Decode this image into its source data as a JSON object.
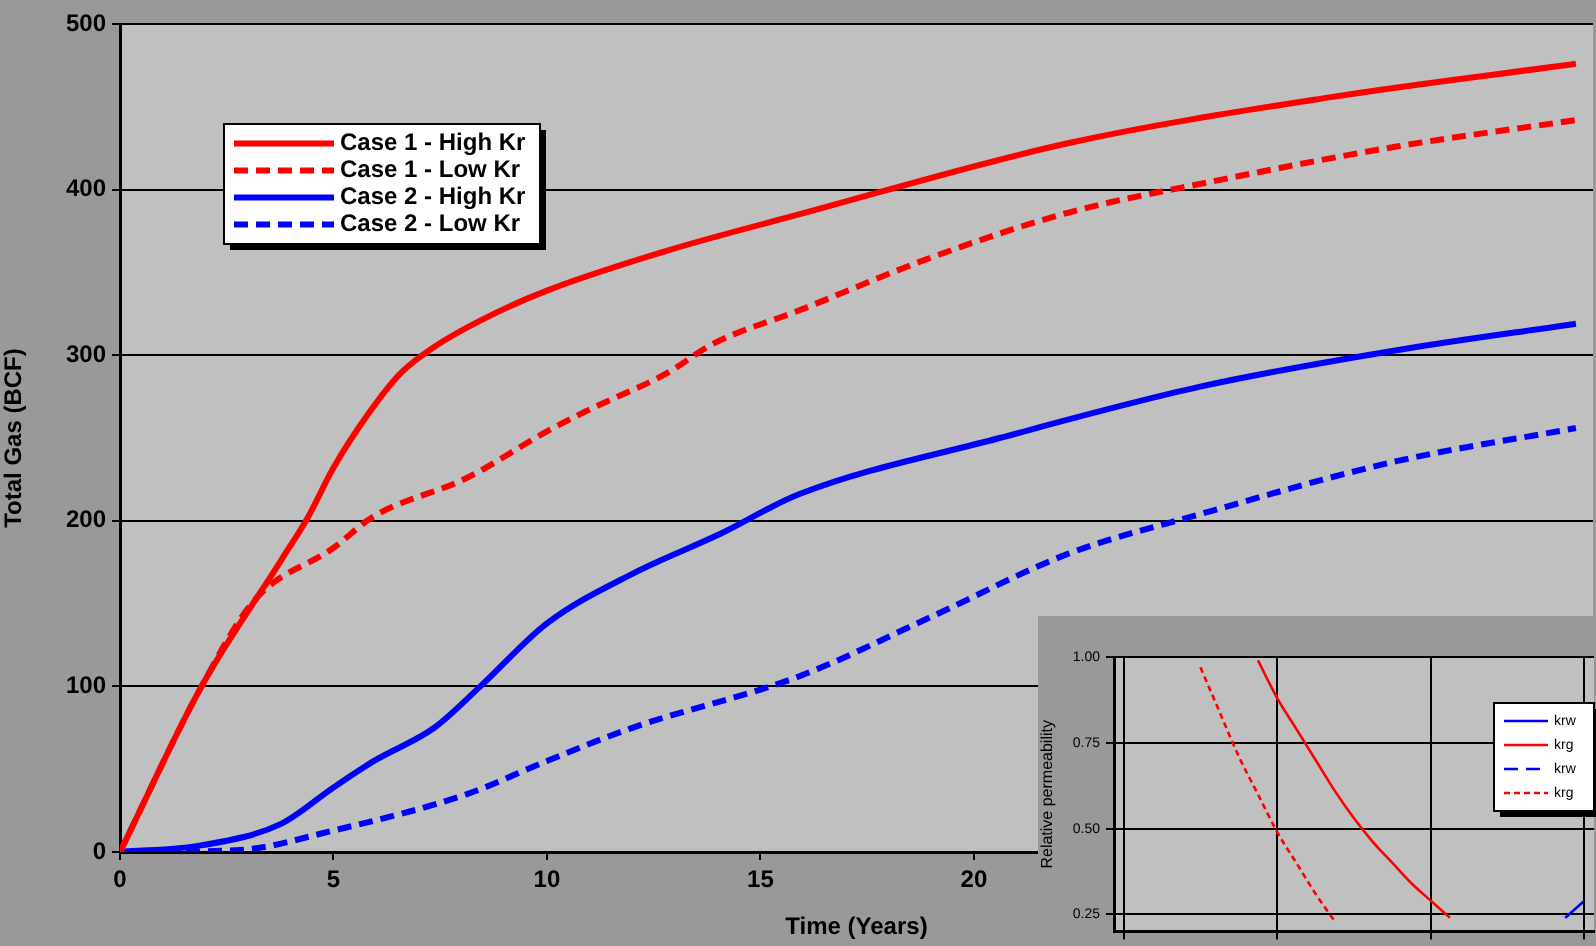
{
  "chart_data": [
    {
      "type": "line",
      "xlabel": "Time (Years)",
      "ylabel": "Total Gas (BCF)",
      "xlim": [
        0,
        34.5
      ],
      "xticks": [
        0,
        5,
        10,
        15,
        20
      ],
      "ylim": [
        0,
        500
      ],
      "yticks": [
        0,
        100,
        200,
        300,
        400,
        500
      ],
      "grid": "y",
      "legend": "top left",
      "series": [
        {
          "name": "Case 1 - High Kr",
          "color": "#ff0000",
          "line_style": "solid",
          "x": [
            0,
            1.91,
            3.77,
            4.4,
            5,
            5.8,
            6.57,
            7.36,
            8.6,
            10,
            12.8,
            15.9,
            22.2,
            28.4,
            34.1
          ],
          "values": [
            0,
            100,
            176,
            202,
            232,
            264,
            289,
            305,
            323,
            339,
            363,
            385,
            428,
            456,
            476
          ]
        },
        {
          "name": "Case 1 - Low Kr",
          "color": "#ff0000",
          "line_style": "dashed",
          "x": [
            0,
            1.91,
            3.15,
            5.02,
            5.9,
            8.13,
            10,
            10.9,
            12.8,
            13.9,
            15.9,
            19,
            22.2,
            25.6,
            29.9,
            34.1
          ],
          "values": [
            0,
            100,
            152,
            184,
            202,
            226,
            254,
            266,
            289,
            307,
            327,
            359,
            386,
            405,
            426,
            442
          ]
        },
        {
          "name": "Case 2 - High Kr",
          "color": "#0000ff",
          "line_style": "solid",
          "x": [
            0,
            1.9,
            3.77,
            5,
            5.95,
            7.36,
            8.44,
            10,
            12,
            14.05,
            15.9,
            20.6,
            25.3,
            29.9,
            34.1
          ],
          "values": [
            0,
            4,
            17,
            39,
            55,
            75,
            100,
            138,
            168,
            192,
            216,
            250,
            281,
            303,
            319
          ]
        },
        {
          "name": "Case 2 - Low Kr",
          "color": "#0000ff",
          "line_style": "dashed",
          "x": [
            0,
            2.7,
            5,
            8.13,
            10,
            12,
            15.9,
            19,
            22.2,
            25.3,
            29.9,
            34.1
          ],
          "values": [
            0,
            1,
            13,
            35,
            55,
            75,
            106,
            142,
            180,
            204,
            236,
            256
          ]
        }
      ]
    },
    {
      "type": "line",
      "ylabel": "Relative permeability",
      "categories": [
        null,
        null,
        null,
        null,
        null,
        null,
        null,
        null,
        null,
        null,
        null,
        null,
        null,
        null,
        null,
        null,
        null,
        null,
        null,
        null,
        null,
        null,
        null,
        null,
        null
      ],
      "ylim": [
        0.2,
        1
      ],
      "yticks": [
        {
          "value": 0.25,
          "label": "0.25"
        },
        {
          "value": 0.5,
          "label": "0.50"
        },
        {
          "value": 0.75,
          "label": "0.75"
        },
        {
          "value": 1,
          "label": "1.00"
        }
      ],
      "tick_labels": "y",
      "grid": true,
      "legend": "top right",
      "series": [
        {
          "name": "krw",
          "color": "#0000ff",
          "line_style": "solid",
          "values": [
            null,
            null,
            null,
            null,
            null,
            null,
            null,
            null,
            null,
            null,
            null,
            null,
            null,
            null,
            null,
            null,
            null,
            null,
            null,
            null,
            null,
            null,
            null,
            0.24,
            0.29
          ]
        },
        {
          "name": "krg",
          "color": "#ff0000",
          "line_style": "solid",
          "values": [
            null,
            null,
            null,
            null,
            null,
            null,
            null,
            0.99,
            0.88,
            0.79,
            0.7,
            0.61,
            0.53,
            0.46,
            0.4,
            0.34,
            0.29,
            0.24,
            null,
            null,
            null,
            null,
            null,
            null,
            null
          ]
        },
        {
          "name": "krw",
          "color": "#0000ff",
          "line_style": "dashed",
          "values": [
            null,
            null,
            null,
            null,
            null,
            null,
            null,
            null,
            null,
            null,
            null,
            null,
            null,
            null,
            null,
            null,
            null,
            null,
            null,
            null,
            null,
            null,
            null,
            null,
            null
          ]
        },
        {
          "name": "krg",
          "color": "#ff0000",
          "line_style": "dotted",
          "values": [
            null,
            null,
            null,
            null,
            0.97,
            0.84,
            0.71,
            0.6,
            0.49,
            0.4,
            0.31,
            0.23,
            null,
            null,
            null,
            null,
            null,
            null,
            null,
            null,
            null,
            null,
            null,
            null,
            null
          ]
        }
      ]
    }
  ]
}
